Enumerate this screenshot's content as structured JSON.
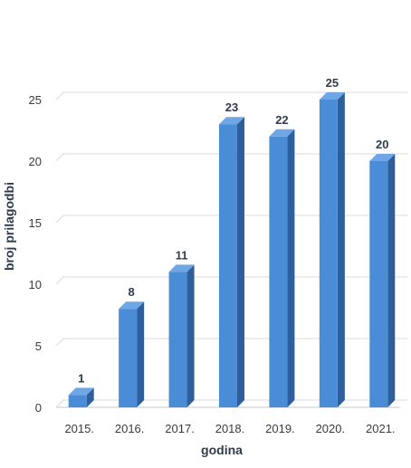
{
  "chart_data": {
    "type": "bar",
    "categories": [
      "2015.",
      "2016.",
      "2017.",
      "2018.",
      "2019.",
      "2020.",
      "2021."
    ],
    "values": [
      1,
      8,
      11,
      23,
      22,
      25,
      20
    ],
    "data_labels": [
      "1",
      "8",
      "11",
      "23",
      "22",
      "25",
      "20"
    ],
    "xlabel": "godina",
    "ylabel": "broj prilagodbi",
    "ylim": [
      0,
      25
    ],
    "yticks": [
      "0",
      "5",
      "10",
      "15",
      "20",
      "25"
    ],
    "grid": true,
    "legend": "none",
    "colors": {
      "bar_front": "#4a8cd6",
      "bar_side": "#2e5f9c",
      "bar_top": "#6fa6e6",
      "grid": "#d9d9d9",
      "baseline": "#c8c8c8"
    }
  }
}
